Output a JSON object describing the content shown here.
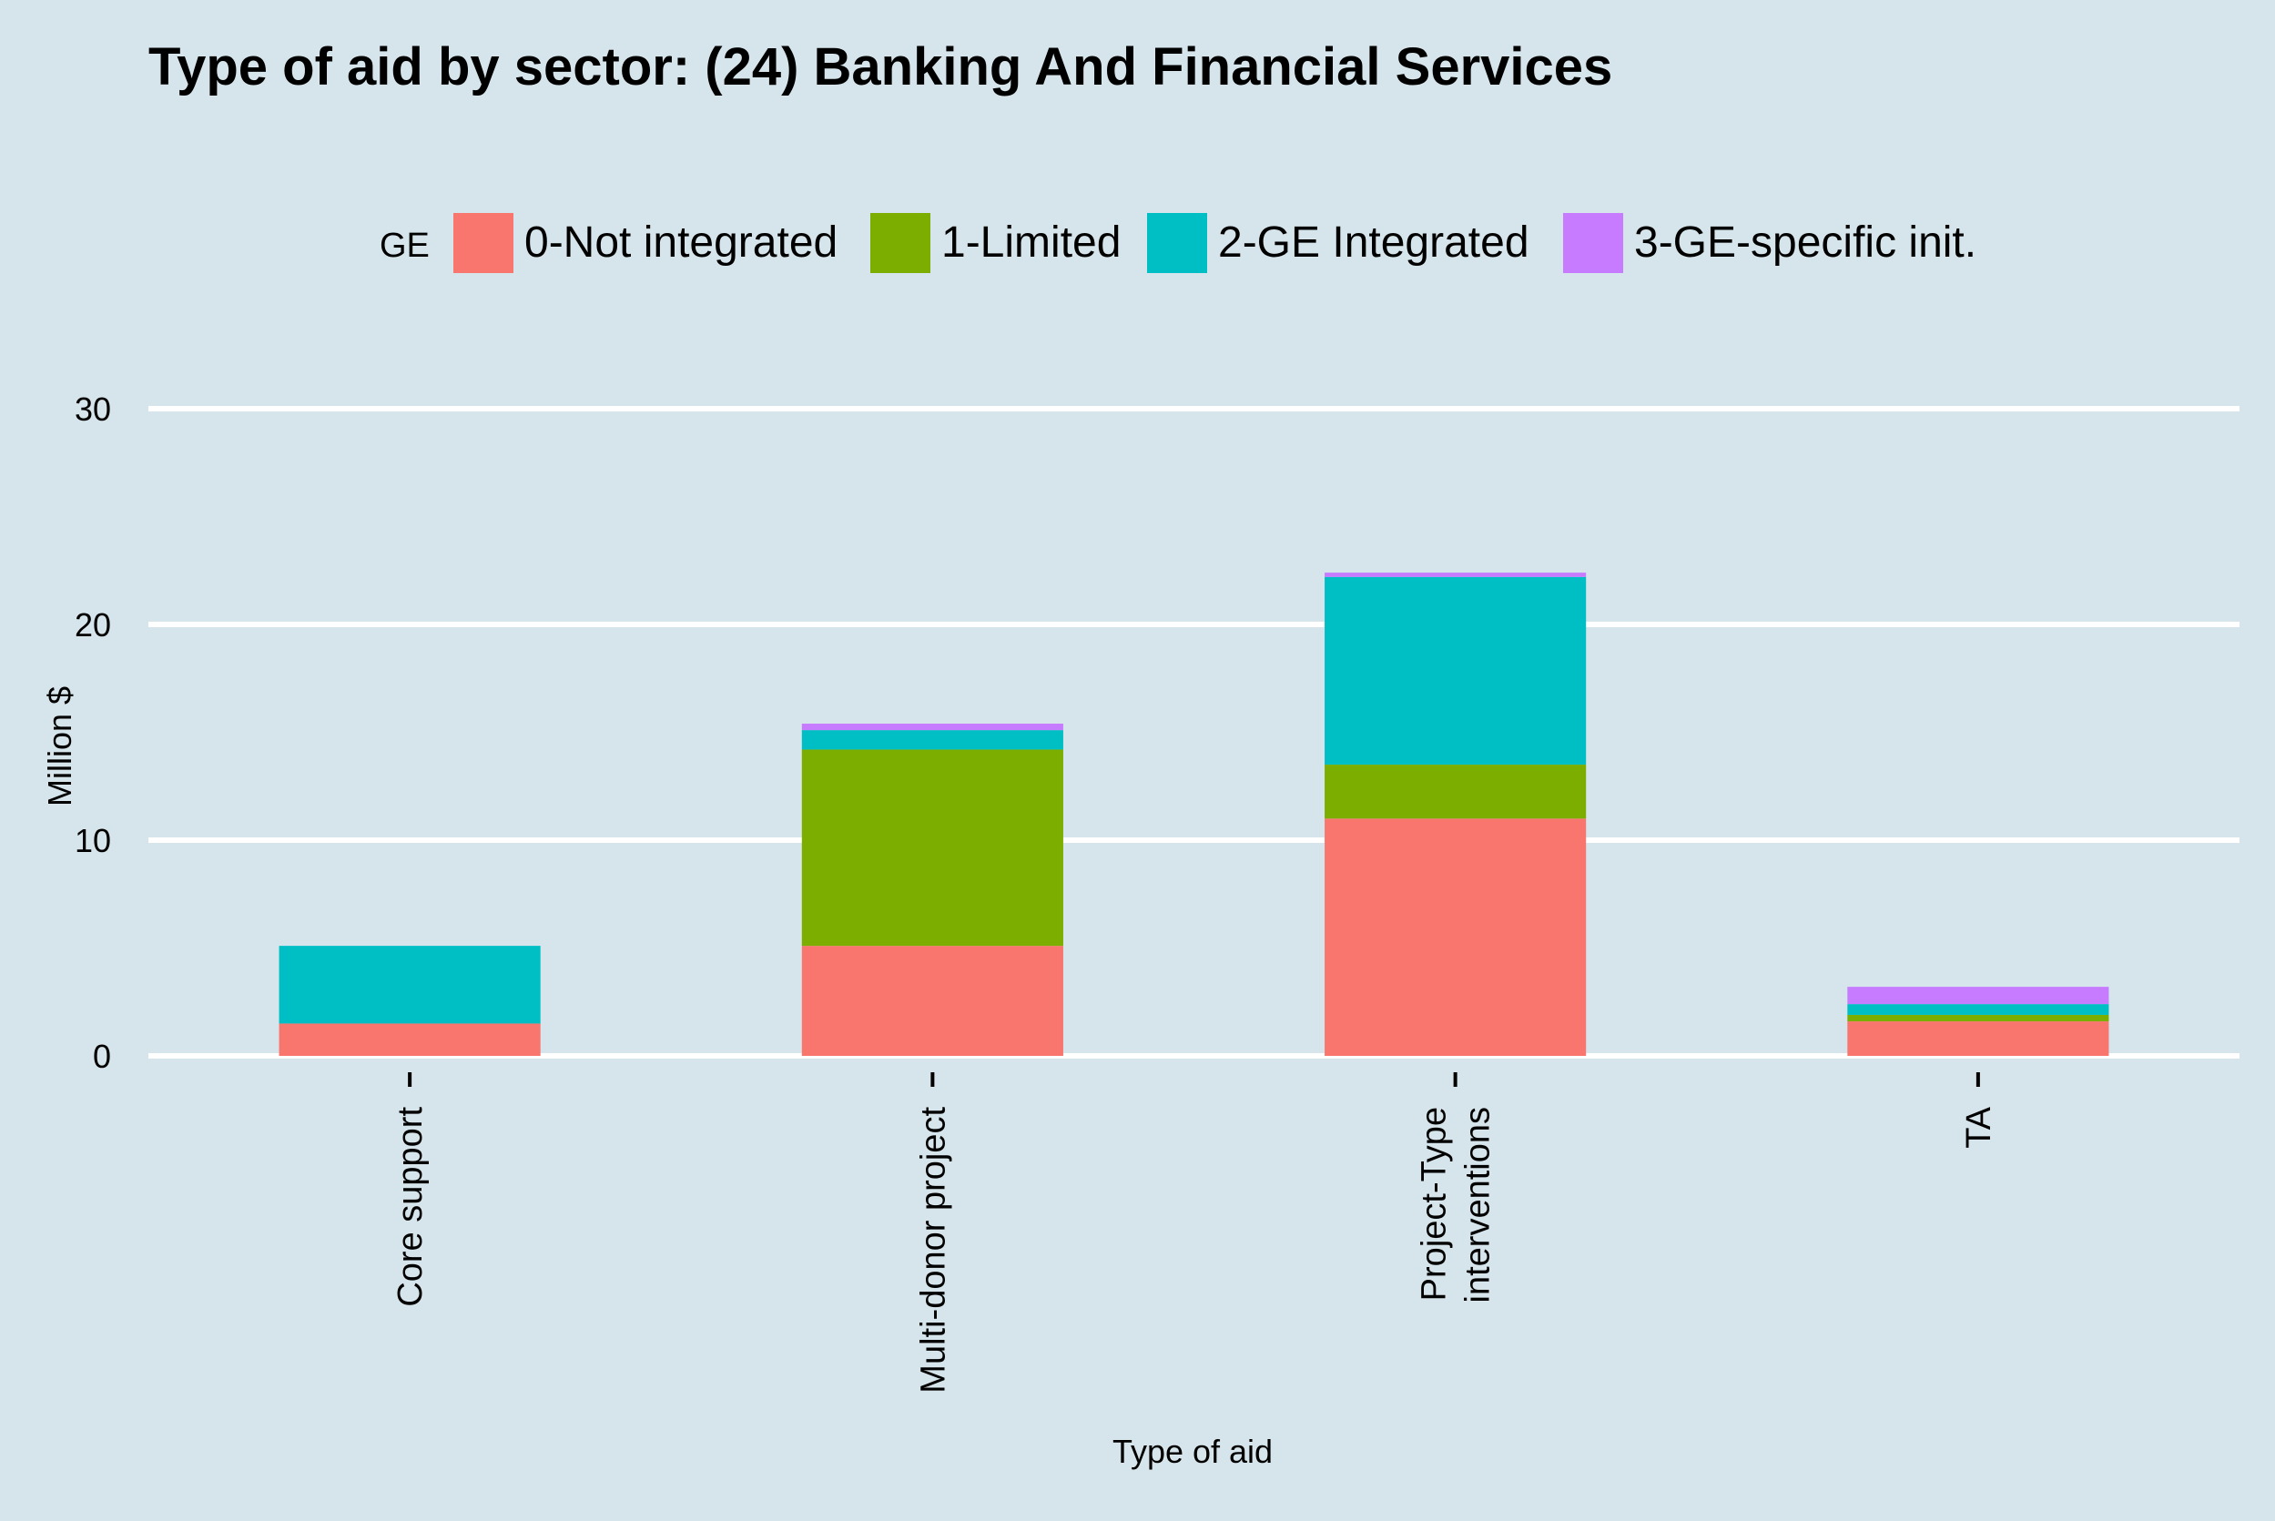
{
  "chart_data": {
    "type": "bar",
    "stacked": true,
    "title": "Type of aid by sector:  (24) Banking And Financial Services",
    "xlabel": "Type of aid",
    "ylabel": "Million $",
    "ylim": [
      0,
      32
    ],
    "yticks": [
      0,
      10,
      20,
      30
    ],
    "grid": true,
    "legend_position": "top",
    "legend_title": "GE",
    "categories": [
      [
        "Core support"
      ],
      [
        "Multi-donor project"
      ],
      [
        "Project-Type",
        "interventions"
      ],
      [
        "TA"
      ]
    ],
    "series": [
      {
        "name": "0-Not integrated",
        "color": "#f8766d",
        "values": [
          1.5,
          5.1,
          11.0,
          1.6
        ]
      },
      {
        "name": "1-Limited",
        "color": "#7cae00",
        "values": [
          0.0,
          9.1,
          2.5,
          0.3
        ]
      },
      {
        "name": "2-GE Integrated",
        "color": "#00bfc4",
        "values": [
          3.6,
          0.9,
          8.7,
          0.5
        ]
      },
      {
        "name": "3-GE-specific init.",
        "color": "#c77cff",
        "values": [
          0.0,
          0.3,
          0.2,
          0.8
        ]
      }
    ]
  }
}
